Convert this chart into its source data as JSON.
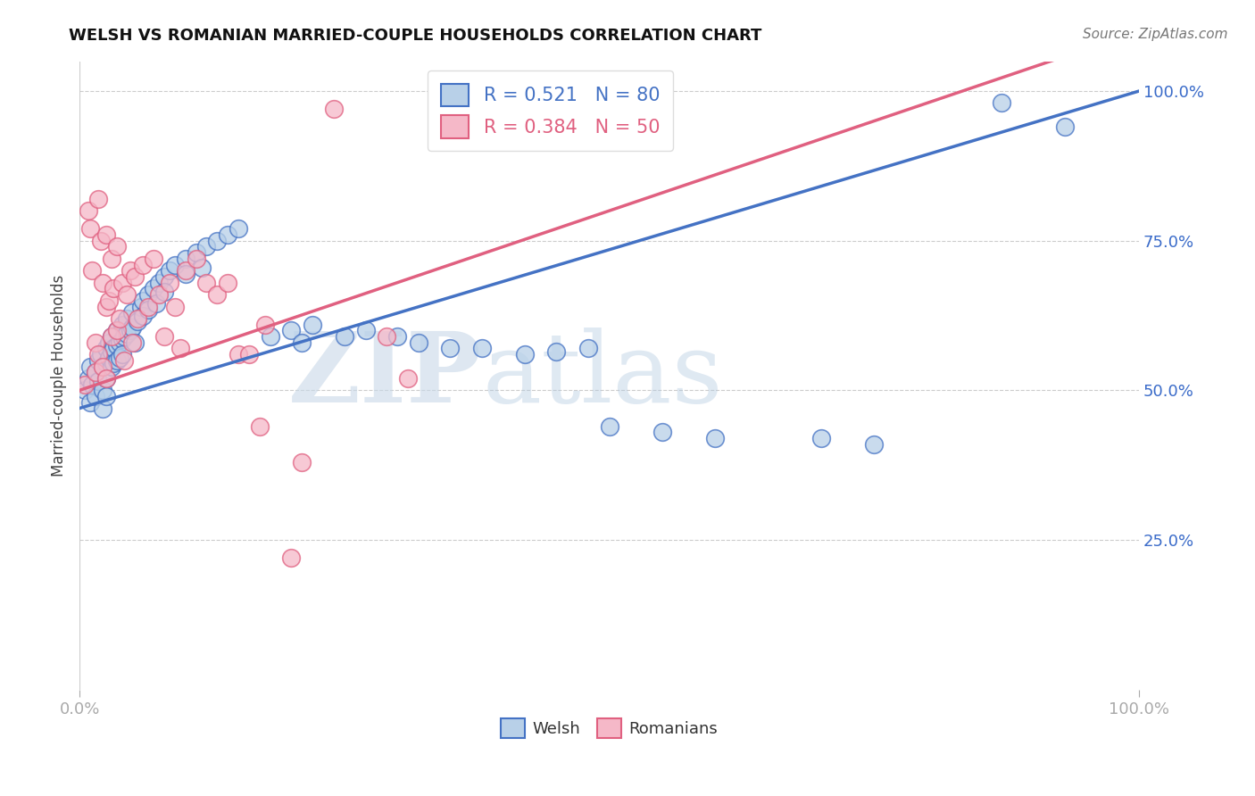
{
  "title": "WELSH VS ROMANIAN MARRIED-COUPLE HOUSEHOLDS CORRELATION CHART",
  "source": "Source: ZipAtlas.com",
  "ylabel": "Married-couple Households",
  "xlim": [
    0.0,
    1.0
  ],
  "ylim": [
    0.0,
    1.05
  ],
  "watermark_zip": "ZIP",
  "watermark_atlas": "atlas",
  "legend_welsh_R": "0.521",
  "legend_welsh_N": "80",
  "legend_romanian_R": "0.384",
  "legend_romanian_N": "50",
  "welsh_color": "#b8d0e8",
  "romanian_color": "#f5b8c8",
  "welsh_line_color": "#4472c4",
  "romanian_line_color": "#e06080",
  "welsh_scatter": [
    [
      0.005,
      0.5
    ],
    [
      0.008,
      0.52
    ],
    [
      0.01,
      0.54
    ],
    [
      0.01,
      0.48
    ],
    [
      0.012,
      0.51
    ],
    [
      0.015,
      0.53
    ],
    [
      0.015,
      0.49
    ],
    [
      0.018,
      0.55
    ],
    [
      0.018,
      0.515
    ],
    [
      0.02,
      0.56
    ],
    [
      0.022,
      0.54
    ],
    [
      0.022,
      0.5
    ],
    [
      0.022,
      0.47
    ],
    [
      0.025,
      0.57
    ],
    [
      0.025,
      0.545
    ],
    [
      0.025,
      0.52
    ],
    [
      0.025,
      0.49
    ],
    [
      0.028,
      0.58
    ],
    [
      0.028,
      0.555
    ],
    [
      0.03,
      0.59
    ],
    [
      0.03,
      0.565
    ],
    [
      0.03,
      0.54
    ],
    [
      0.032,
      0.57
    ],
    [
      0.032,
      0.545
    ],
    [
      0.035,
      0.6
    ],
    [
      0.035,
      0.575
    ],
    [
      0.035,
      0.55
    ],
    [
      0.038,
      0.58
    ],
    [
      0.038,
      0.555
    ],
    [
      0.04,
      0.61
    ],
    [
      0.04,
      0.585
    ],
    [
      0.04,
      0.56
    ],
    [
      0.042,
      0.59
    ],
    [
      0.045,
      0.62
    ],
    [
      0.045,
      0.595
    ],
    [
      0.048,
      0.6
    ],
    [
      0.05,
      0.63
    ],
    [
      0.05,
      0.605
    ],
    [
      0.052,
      0.58
    ],
    [
      0.055,
      0.615
    ],
    [
      0.058,
      0.64
    ],
    [
      0.06,
      0.65
    ],
    [
      0.06,
      0.625
    ],
    [
      0.065,
      0.66
    ],
    [
      0.065,
      0.635
    ],
    [
      0.07,
      0.67
    ],
    [
      0.072,
      0.645
    ],
    [
      0.075,
      0.68
    ],
    [
      0.08,
      0.69
    ],
    [
      0.08,
      0.665
    ],
    [
      0.085,
      0.7
    ],
    [
      0.09,
      0.71
    ],
    [
      0.1,
      0.72
    ],
    [
      0.1,
      0.695
    ],
    [
      0.11,
      0.73
    ],
    [
      0.115,
      0.705
    ],
    [
      0.12,
      0.74
    ],
    [
      0.13,
      0.75
    ],
    [
      0.14,
      0.76
    ],
    [
      0.15,
      0.77
    ],
    [
      0.18,
      0.59
    ],
    [
      0.2,
      0.6
    ],
    [
      0.21,
      0.58
    ],
    [
      0.22,
      0.61
    ],
    [
      0.25,
      0.59
    ],
    [
      0.27,
      0.6
    ],
    [
      0.3,
      0.59
    ],
    [
      0.32,
      0.58
    ],
    [
      0.35,
      0.57
    ],
    [
      0.38,
      0.57
    ],
    [
      0.42,
      0.56
    ],
    [
      0.45,
      0.565
    ],
    [
      0.48,
      0.57
    ],
    [
      0.5,
      0.44
    ],
    [
      0.55,
      0.43
    ],
    [
      0.6,
      0.42
    ],
    [
      0.7,
      0.42
    ],
    [
      0.75,
      0.41
    ],
    [
      0.87,
      0.98
    ],
    [
      0.93,
      0.94
    ]
  ],
  "romanian_scatter": [
    [
      0.005,
      0.51
    ],
    [
      0.008,
      0.8
    ],
    [
      0.01,
      0.77
    ],
    [
      0.012,
      0.7
    ],
    [
      0.015,
      0.58
    ],
    [
      0.015,
      0.53
    ],
    [
      0.018,
      0.82
    ],
    [
      0.018,
      0.56
    ],
    [
      0.02,
      0.75
    ],
    [
      0.022,
      0.68
    ],
    [
      0.022,
      0.54
    ],
    [
      0.025,
      0.76
    ],
    [
      0.025,
      0.64
    ],
    [
      0.025,
      0.52
    ],
    [
      0.028,
      0.65
    ],
    [
      0.03,
      0.72
    ],
    [
      0.03,
      0.59
    ],
    [
      0.032,
      0.67
    ],
    [
      0.035,
      0.74
    ],
    [
      0.035,
      0.6
    ],
    [
      0.038,
      0.62
    ],
    [
      0.04,
      0.68
    ],
    [
      0.042,
      0.55
    ],
    [
      0.045,
      0.66
    ],
    [
      0.048,
      0.7
    ],
    [
      0.05,
      0.58
    ],
    [
      0.052,
      0.69
    ],
    [
      0.055,
      0.62
    ],
    [
      0.06,
      0.71
    ],
    [
      0.065,
      0.64
    ],
    [
      0.07,
      0.72
    ],
    [
      0.075,
      0.66
    ],
    [
      0.08,
      0.59
    ],
    [
      0.085,
      0.68
    ],
    [
      0.09,
      0.64
    ],
    [
      0.095,
      0.57
    ],
    [
      0.1,
      0.7
    ],
    [
      0.11,
      0.72
    ],
    [
      0.12,
      0.68
    ],
    [
      0.13,
      0.66
    ],
    [
      0.14,
      0.68
    ],
    [
      0.15,
      0.56
    ],
    [
      0.16,
      0.56
    ],
    [
      0.17,
      0.44
    ],
    [
      0.175,
      0.61
    ],
    [
      0.2,
      0.22
    ],
    [
      0.21,
      0.38
    ],
    [
      0.24,
      0.97
    ],
    [
      0.29,
      0.59
    ],
    [
      0.31,
      0.52
    ]
  ]
}
